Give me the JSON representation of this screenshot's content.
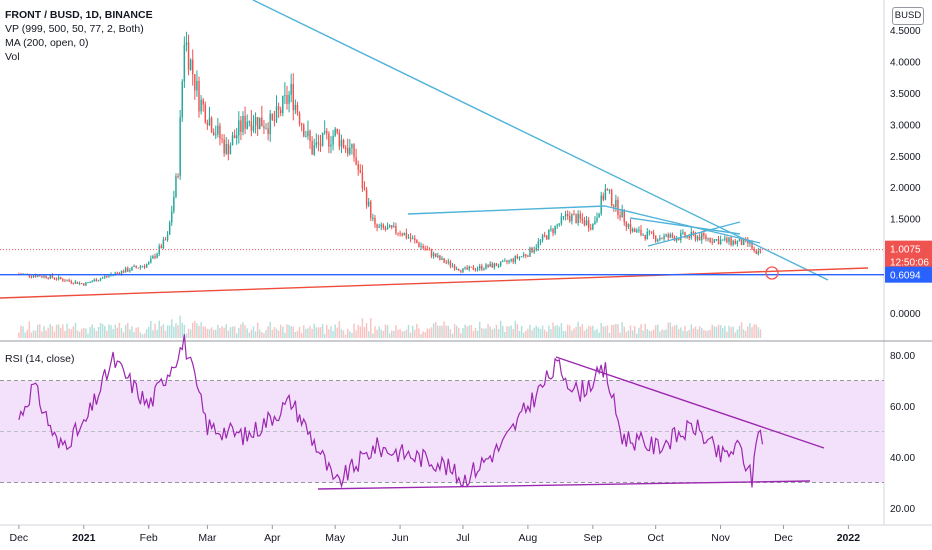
{
  "header": {
    "symbol_line": "FRONT / BUSD, 1D, BINANCE",
    "vp_line": "VP (999, 500, 50, 77, 2, Both)",
    "ma_line": "MA (200, open, 0)",
    "vol_line": "Vol",
    "currency": "BUSD"
  },
  "rsi_panel": {
    "label": "RSI (14, close)"
  },
  "price_tags": {
    "last_price": "1.0075",
    "countdown": "12:50:06",
    "level_line": "0.6094"
  },
  "colors": {
    "bull": "#26a69a",
    "bear": "#ef5350",
    "trendline": "#4fb3d9",
    "support_line": "#ef4c3c",
    "level_line": "#2962ff",
    "rsi": "#9c27b0",
    "rsi_band": "#f3e0fb"
  },
  "chart_data": [
    {
      "type": "candlestick",
      "title": "FRONT / BUSD, 1D, BINANCE",
      "y_axis_ticks": [
        "4.5000",
        "4.0000",
        "3.5000",
        "3.0000",
        "2.5000",
        "2.0000",
        "1.5000",
        "0.0000"
      ],
      "x_axis_ticks": [
        "Dec",
        "2021",
        "Feb",
        "Mar",
        "Apr",
        "May",
        "Jun",
        "Jul",
        "Aug",
        "Sep",
        "Oct",
        "Nov",
        "Dec",
        "2022"
      ],
      "ylim": [
        0.0,
        4.75
      ],
      "price_path": [
        {
          "date": "2020-12-01",
          "close": 0.62
        },
        {
          "date": "2020-12-15",
          "close": 0.58
        },
        {
          "date": "2021-01-01",
          "close": 0.46
        },
        {
          "date": "2021-01-15",
          "close": 0.62
        },
        {
          "date": "2021-02-01",
          "close": 0.78
        },
        {
          "date": "2021-02-10",
          "close": 1.2
        },
        {
          "date": "2021-02-15",
          "close": 2.3
        },
        {
          "date": "2021-02-18",
          "close": 4.4
        },
        {
          "date": "2021-02-25",
          "close": 3.4
        },
        {
          "date": "2021-03-10",
          "close": 2.6
        },
        {
          "date": "2021-03-20",
          "close": 3.1
        },
        {
          "date": "2021-04-01",
          "close": 3.0
        },
        {
          "date": "2021-04-10",
          "close": 3.5
        },
        {
          "date": "2021-04-20",
          "close": 2.6
        },
        {
          "date": "2021-05-01",
          "close": 2.85
        },
        {
          "date": "2021-05-10",
          "close": 2.5
        },
        {
          "date": "2021-05-20",
          "close": 1.35
        },
        {
          "date": "2021-06-01",
          "close": 1.3
        },
        {
          "date": "2021-06-20",
          "close": 0.85
        },
        {
          "date": "2021-07-01",
          "close": 0.68
        },
        {
          "date": "2021-07-20",
          "close": 0.78
        },
        {
          "date": "2021-08-01",
          "close": 0.95
        },
        {
          "date": "2021-08-20",
          "close": 1.55
        },
        {
          "date": "2021-09-01",
          "close": 1.4
        },
        {
          "date": "2021-09-07",
          "close": 1.95
        },
        {
          "date": "2021-09-20",
          "close": 1.3
        },
        {
          "date": "2021-10-01",
          "close": 1.2
        },
        {
          "date": "2021-10-20",
          "close": 1.22
        },
        {
          "date": "2021-11-01",
          "close": 1.15
        },
        {
          "date": "2021-11-15",
          "close": 1.1
        },
        {
          "date": "2021-11-18",
          "close": 0.9
        },
        {
          "date": "2021-11-21",
          "close": 1.0075
        }
      ],
      "current_price": 1.0075,
      "horizontal_level": 0.6094
    },
    {
      "type": "line",
      "title": "RSI (14, close)",
      "y_axis_ticks": [
        "80.00",
        "60.00",
        "40.00",
        "20.00"
      ],
      "ylim": [
        15,
        87
      ],
      "band": [
        30,
        70
      ],
      "mid_line": 50,
      "series": [
        {
          "points": [
            {
              "date": "2020-12-01",
              "value": 55
            },
            {
              "date": "2020-12-08",
              "value": 68
            },
            {
              "date": "2020-12-20",
              "value": 44
            },
            {
              "date": "2021-01-01",
              "value": 52
            },
            {
              "date": "2021-01-15",
              "value": 78
            },
            {
              "date": "2021-02-01",
              "value": 60
            },
            {
              "date": "2021-02-18",
              "value": 85
            },
            {
              "date": "2021-03-01",
              "value": 52
            },
            {
              "date": "2021-03-20",
              "value": 48
            },
            {
              "date": "2021-04-10",
              "value": 62
            },
            {
              "date": "2021-04-25",
              "value": 40
            },
            {
              "date": "2021-05-01",
              "value": 29
            },
            {
              "date": "2021-05-20",
              "value": 44
            },
            {
              "date": "2021-06-20",
              "value": 38
            },
            {
              "date": "2021-07-01",
              "value": 31
            },
            {
              "date": "2021-07-20",
              "value": 45
            },
            {
              "date": "2021-08-01",
              "value": 60
            },
            {
              "date": "2021-08-15",
              "value": 76
            },
            {
              "date": "2021-08-25",
              "value": 65
            },
            {
              "date": "2021-09-07",
              "value": 74
            },
            {
              "date": "2021-09-15",
              "value": 48
            },
            {
              "date": "2021-10-01",
              "value": 44
            },
            {
              "date": "2021-10-20",
              "value": 52
            },
            {
              "date": "2021-11-01",
              "value": 40
            },
            {
              "date": "2021-11-10",
              "value": 44
            },
            {
              "date": "2021-11-16",
              "value": 31
            },
            {
              "date": "2021-11-19",
              "value": 53
            },
            {
              "date": "2021-11-21",
              "value": 45
            }
          ]
        }
      ]
    }
  ]
}
